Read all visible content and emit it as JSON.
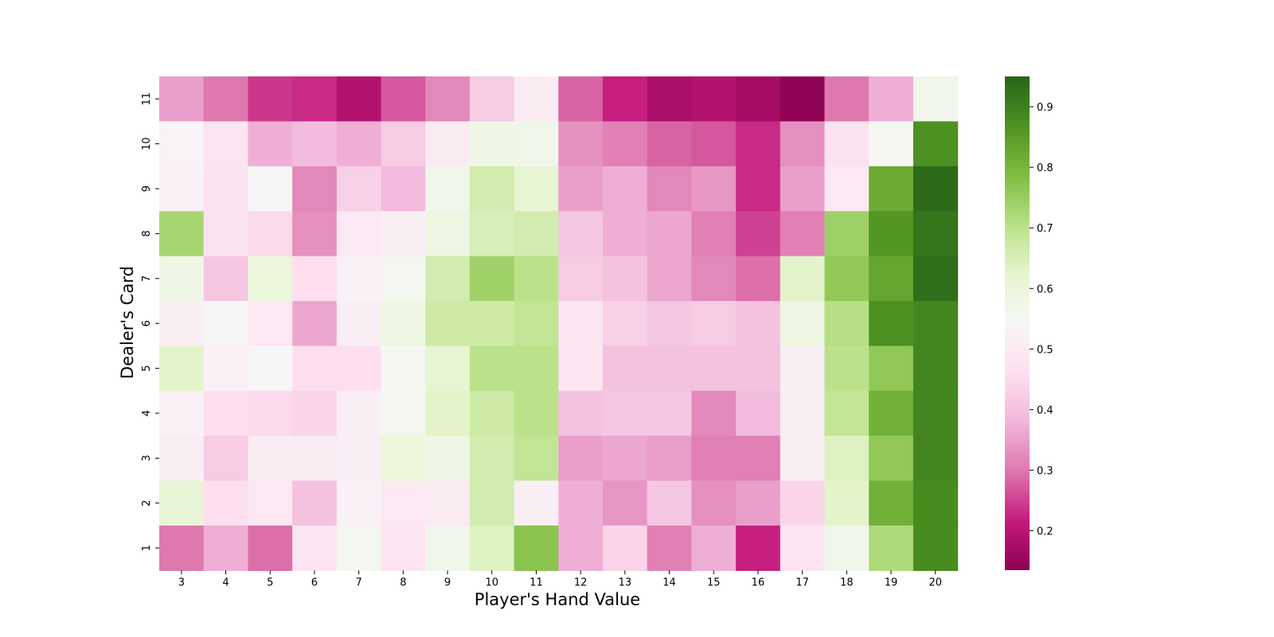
{
  "chart_data": {
    "type": "heatmap",
    "xlabel": "Player's Hand Value",
    "ylabel": "Dealer's Card",
    "x": [
      "3",
      "4",
      "5",
      "6",
      "7",
      "8",
      "9",
      "10",
      "11",
      "12",
      "13",
      "14",
      "15",
      "16",
      "17",
      "18",
      "19",
      "20"
    ],
    "y": [
      "11",
      "10",
      "9",
      "8",
      "7",
      "6",
      "5",
      "4",
      "3",
      "2",
      "1"
    ],
    "values": [
      [
        0.35,
        0.3,
        0.24,
        0.23,
        0.19,
        0.27,
        0.32,
        0.42,
        0.5,
        0.28,
        0.22,
        0.18,
        0.19,
        0.17,
        0.14,
        0.3,
        0.37,
        0.57
      ],
      [
        0.53,
        0.48,
        0.37,
        0.39,
        0.37,
        0.42,
        0.5,
        0.58,
        0.57,
        0.33,
        0.31,
        0.28,
        0.27,
        0.23,
        0.33,
        0.47,
        0.55,
        0.87
      ],
      [
        0.52,
        0.47,
        0.54,
        0.32,
        0.43,
        0.39,
        0.57,
        0.66,
        0.62,
        0.35,
        0.37,
        0.32,
        0.34,
        0.23,
        0.35,
        0.49,
        0.82,
        0.94
      ],
      [
        0.73,
        0.47,
        0.45,
        0.33,
        0.49,
        0.51,
        0.59,
        0.65,
        0.66,
        0.41,
        0.37,
        0.36,
        0.31,
        0.25,
        0.31,
        0.74,
        0.86,
        0.92
      ],
      [
        0.58,
        0.41,
        0.6,
        0.46,
        0.52,
        0.56,
        0.66,
        0.74,
        0.7,
        0.42,
        0.4,
        0.36,
        0.32,
        0.29,
        0.63,
        0.76,
        0.83,
        0.93
      ],
      [
        0.51,
        0.54,
        0.49,
        0.36,
        0.51,
        0.59,
        0.67,
        0.67,
        0.69,
        0.48,
        0.43,
        0.41,
        0.42,
        0.4,
        0.59,
        0.71,
        0.87,
        0.89
      ],
      [
        0.63,
        0.52,
        0.54,
        0.46,
        0.46,
        0.55,
        0.62,
        0.7,
        0.7,
        0.48,
        0.4,
        0.4,
        0.4,
        0.4,
        0.51,
        0.7,
        0.76,
        0.89
      ],
      [
        0.52,
        0.46,
        0.45,
        0.44,
        0.51,
        0.56,
        0.63,
        0.67,
        0.7,
        0.4,
        0.41,
        0.41,
        0.32,
        0.39,
        0.51,
        0.69,
        0.81,
        0.89
      ],
      [
        0.51,
        0.42,
        0.5,
        0.5,
        0.51,
        0.6,
        0.58,
        0.66,
        0.69,
        0.35,
        0.36,
        0.35,
        0.31,
        0.31,
        0.51,
        0.64,
        0.76,
        0.89
      ],
      [
        0.61,
        0.46,
        0.49,
        0.4,
        0.52,
        0.49,
        0.5,
        0.66,
        0.51,
        0.37,
        0.34,
        0.41,
        0.33,
        0.35,
        0.44,
        0.63,
        0.81,
        0.88
      ],
      [
        0.3,
        0.37,
        0.29,
        0.48,
        0.56,
        0.48,
        0.57,
        0.64,
        0.77,
        0.37,
        0.44,
        0.31,
        0.37,
        0.22,
        0.48,
        0.57,
        0.72,
        0.88
      ]
    ],
    "colorbar": {
      "cmap": "PiYG",
      "range": [
        0.135,
        0.95
      ],
      "ticks": [
        "0.2",
        "0.3",
        "0.4",
        "0.5",
        "0.6",
        "0.7",
        "0.8",
        "0.9"
      ]
    },
    "legend": "colorbar right",
    "grid": false
  }
}
